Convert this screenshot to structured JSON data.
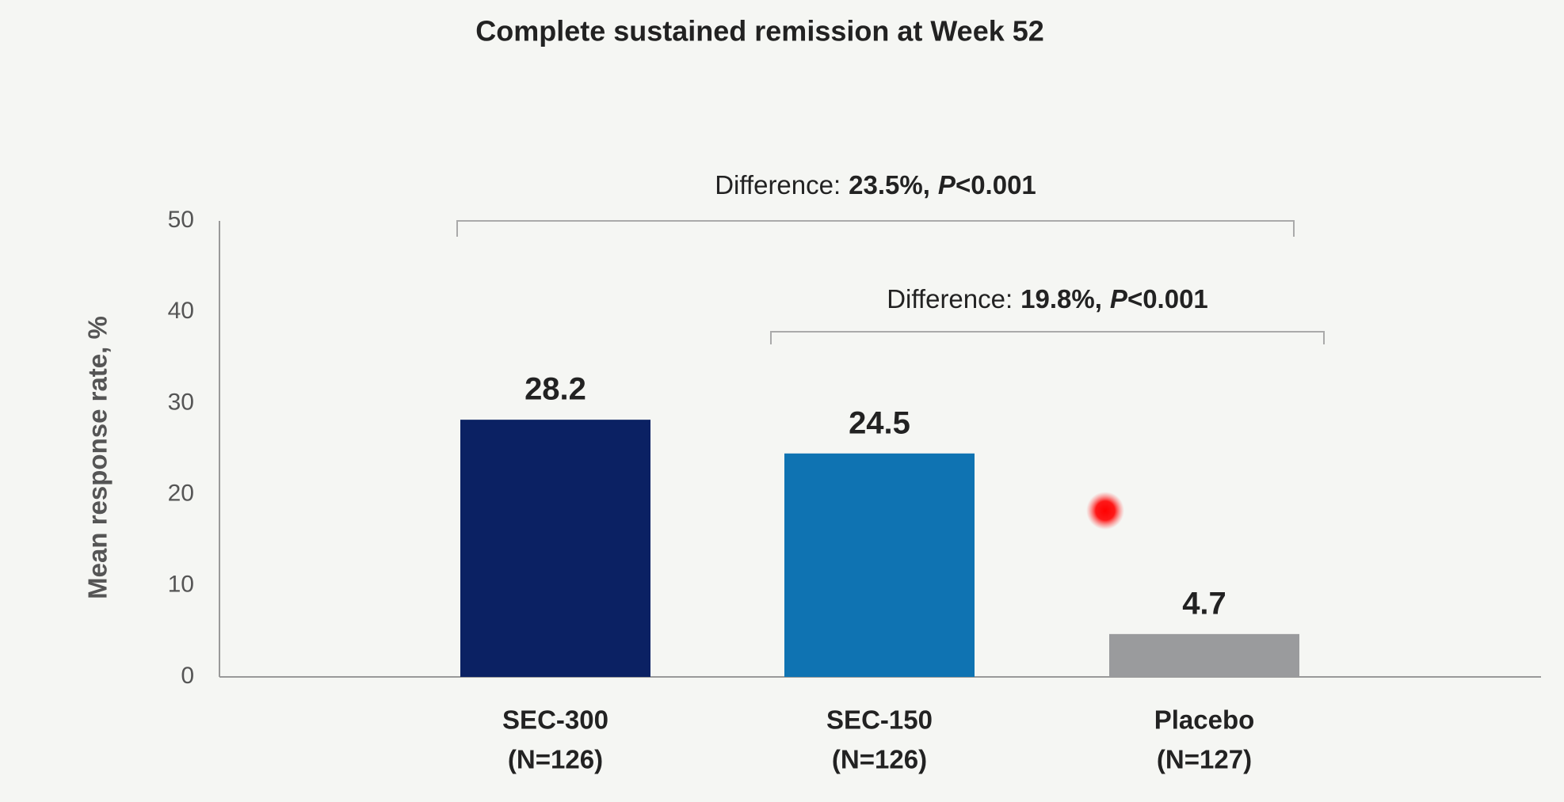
{
  "chart_data": {
    "type": "bar",
    "title": "Complete sustained remission at Week 52",
    "y_label": "Mean response rate, %",
    "categories": [
      "SEC-300",
      "SEC-150",
      "Placebo"
    ],
    "category_sublabels": [
      "(N=126)",
      "(N=126)",
      "(N=127)"
    ],
    "values": [
      28.2,
      24.5,
      4.7
    ],
    "colors": [
      "#0b2163",
      "#0f73b2",
      "#9a9b9d"
    ],
    "ylim": [
      0,
      50
    ],
    "yticks": [
      0,
      10,
      20,
      30,
      40,
      50
    ],
    "grid": false,
    "annotations": [
      {
        "label": "Difference:",
        "difference": "23.5%,",
        "p": "P",
        "p_value": "<0.001"
      },
      {
        "label": "Difference:",
        "difference": "19.8%,",
        "p": "P",
        "p_value": "<0.001"
      }
    ]
  }
}
